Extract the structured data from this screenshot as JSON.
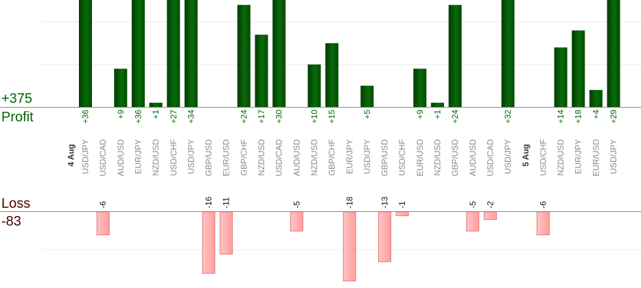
{
  "summary": {
    "profit_total": "+375",
    "profit_label": "Profit",
    "loss_label": "Loss",
    "loss_total": "-83"
  },
  "colors": {
    "profit_dark": "#004d00",
    "profit_light": "#1a7a1a",
    "profit_text": "#006400",
    "loss_fill": "#ffb3b3",
    "loss_stroke": "#e07a7a",
    "loss_text": "#4a0000",
    "grid": "#e8e8e8",
    "axis": "#888888",
    "label": "#888888",
    "date": "#333333"
  },
  "chart_data": {
    "type": "bar",
    "profit_scale_max": 40,
    "loss_scale_max": 18,
    "gridlines_profit": [
      10,
      20
    ],
    "gridlines_loss": [
      10
    ],
    "columns": [
      {
        "label": "USD/JPY",
        "value": 36,
        "date": "4 Aug"
      },
      {
        "label": "USD/CAD",
        "value": -6
      },
      {
        "label": "AUD/USD",
        "value": 9
      },
      {
        "label": "EUR/JPY",
        "value": 36
      },
      {
        "label": "NZD/USD",
        "value": 1
      },
      {
        "label": "USD/CHF",
        "value": 27
      },
      {
        "label": "USD/JPY",
        "value": 34
      },
      {
        "label": "GBP/USD",
        "value": -16
      },
      {
        "label": "EUR/USD",
        "value": -11
      },
      {
        "label": "GBP/CHF",
        "value": 24
      },
      {
        "label": "NZD/USD",
        "value": 17
      },
      {
        "label": "USD/CAD",
        "value": 30
      },
      {
        "label": "AUD/USD",
        "value": -5
      },
      {
        "label": "NZD/USD",
        "value": 10
      },
      {
        "label": "GBP/CHF",
        "value": 15
      },
      {
        "label": "EUR/JPY",
        "value": -18
      },
      {
        "label": "USD/JPY",
        "value": 5
      },
      {
        "label": "GBP/USD",
        "value": -13
      },
      {
        "label": "USD/CHF",
        "value": -1
      },
      {
        "label": "EUR/USD",
        "value": 9
      },
      {
        "label": "NZD/USD",
        "value": 1
      },
      {
        "label": "GBP/USD",
        "value": 24
      },
      {
        "label": "AUD/USD",
        "value": -5
      },
      {
        "label": "USD/CAD",
        "value": -2
      },
      {
        "label": "USD/JPY",
        "value": 32
      },
      {
        "label": "",
        "value": null,
        "date": "5 Aug"
      },
      {
        "label": "USD/CHF",
        "value": -6
      },
      {
        "label": "NZD/USD",
        "value": 14
      },
      {
        "label": "EUR/JPY",
        "value": 18
      },
      {
        "label": "EUR/USD",
        "value": 4
      },
      {
        "label": "USD/JPY",
        "value": 29
      }
    ]
  }
}
